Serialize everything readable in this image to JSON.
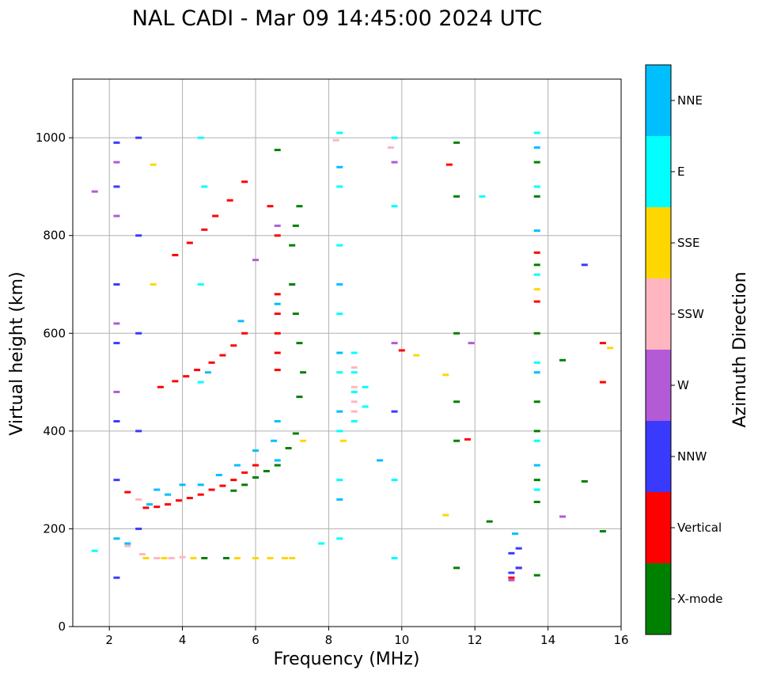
{
  "chart_data": {
    "type": "scatter",
    "title": "NAL CADI - Mar 09 14:45:00 2024 UTC",
    "xlabel": "Frequency (MHz)",
    "ylabel": "Virtual height (km)",
    "xlim": [
      1,
      16
    ],
    "ylim": [
      0,
      1120
    ],
    "xticks": [
      2,
      4,
      6,
      8,
      10,
      12,
      14,
      16
    ],
    "yticks": [
      0,
      200,
      400,
      600,
      800,
      1000
    ],
    "grid": true,
    "colorbar": {
      "label": "Azimuth Direction",
      "categories": [
        "X-mode",
        "Vertical",
        "NNW",
        "W",
        "SSW",
        "SSE",
        "E",
        "NNE"
      ],
      "colors": [
        "#008000",
        "#ff0000",
        "#3a3aff",
        "#b35ad6",
        "#ffb6c1",
        "#ffd700",
        "#00ffff",
        "#00bfff"
      ]
    },
    "series": [
      {
        "name": "Vertical",
        "points": [
          [
            3.0,
            243
          ],
          [
            3.3,
            245
          ],
          [
            3.6,
            250
          ],
          [
            3.9,
            258
          ],
          [
            4.2,
            263
          ],
          [
            4.5,
            270
          ],
          [
            4.8,
            280
          ],
          [
            5.1,
            288
          ],
          [
            5.4,
            300
          ],
          [
            5.7,
            315
          ],
          [
            6.0,
            330
          ],
          [
            2.5,
            275
          ],
          [
            3.4,
            490
          ],
          [
            3.8,
            502
          ],
          [
            4.1,
            512
          ],
          [
            4.4,
            525
          ],
          [
            4.8,
            540
          ],
          [
            5.1,
            555
          ],
          [
            5.4,
            575
          ],
          [
            5.7,
            600
          ],
          [
            3.8,
            760
          ],
          [
            4.2,
            785
          ],
          [
            4.6,
            812
          ],
          [
            4.9,
            840
          ],
          [
            5.3,
            872
          ],
          [
            5.7,
            910
          ],
          [
            6.6,
            525
          ],
          [
            6.6,
            560
          ],
          [
            6.6,
            600
          ],
          [
            6.6,
            640
          ],
          [
            6.6,
            680
          ],
          [
            6.6,
            800
          ],
          [
            6.4,
            860
          ],
          [
            11.3,
            945
          ],
          [
            13.0,
            100
          ],
          [
            13.2,
            120
          ],
          [
            15.5,
            500
          ],
          [
            15.5,
            580
          ],
          [
            13.7,
            665
          ],
          [
            13.7,
            765
          ],
          [
            11.8,
            383
          ],
          [
            10.0,
            565
          ]
        ]
      },
      {
        "name": "X-mode",
        "points": [
          [
            5.4,
            278
          ],
          [
            5.7,
            290
          ],
          [
            6.0,
            305
          ],
          [
            6.3,
            318
          ],
          [
            6.6,
            330
          ],
          [
            6.9,
            365
          ],
          [
            7.1,
            395
          ],
          [
            7.2,
            470
          ],
          [
            7.3,
            520
          ],
          [
            7.2,
            580
          ],
          [
            7.1,
            640
          ],
          [
            7.0,
            700
          ],
          [
            7.0,
            780
          ],
          [
            7.1,
            820
          ],
          [
            7.2,
            860
          ],
          [
            5.2,
            140
          ],
          [
            4.6,
            140
          ],
          [
            11.5,
            990
          ],
          [
            11.5,
            880
          ],
          [
            11.5,
            600
          ],
          [
            11.5,
            460
          ],
          [
            11.5,
            380
          ],
          [
            11.5,
            120
          ],
          [
            13.7,
            950
          ],
          [
            13.7,
            880
          ],
          [
            13.7,
            740
          ],
          [
            13.7,
            600
          ],
          [
            13.7,
            460
          ],
          [
            13.7,
            400
          ],
          [
            13.7,
            300
          ],
          [
            13.7,
            255
          ],
          [
            13.7,
            105
          ],
          [
            14.4,
            545
          ],
          [
            15.0,
            297
          ],
          [
            12.4,
            215
          ],
          [
            15.5,
            195
          ],
          [
            6.6,
            975
          ]
        ]
      },
      {
        "name": "NNW",
        "points": [
          [
            2.2,
            990
          ],
          [
            2.2,
            900
          ],
          [
            2.2,
            700
          ],
          [
            2.2,
            580
          ],
          [
            2.2,
            420
          ],
          [
            2.2,
            300
          ],
          [
            2.2,
            100
          ],
          [
            2.8,
            1000
          ],
          [
            2.8,
            800
          ],
          [
            2.8,
            600
          ],
          [
            2.8,
            400
          ],
          [
            2.8,
            200
          ],
          [
            13.0,
            150
          ],
          [
            13.2,
            160
          ],
          [
            13.2,
            120
          ],
          [
            13.0,
            110
          ],
          [
            15.0,
            740
          ],
          [
            9.8,
            440
          ]
        ]
      },
      {
        "name": "W",
        "points": [
          [
            2.2,
            950
          ],
          [
            2.2,
            840
          ],
          [
            2.2,
            620
          ],
          [
            2.2,
            480
          ],
          [
            1.6,
            890
          ],
          [
            6.6,
            820
          ],
          [
            6.0,
            750
          ],
          [
            9.8,
            950
          ],
          [
            9.8,
            580
          ],
          [
            13.0,
            95
          ],
          [
            14.4,
            225
          ],
          [
            11.9,
            580
          ]
        ]
      },
      {
        "name": "SSW",
        "points": [
          [
            2.5,
            165
          ],
          [
            2.9,
            148
          ],
          [
            3.3,
            140
          ],
          [
            3.7,
            140
          ],
          [
            4.0,
            142
          ],
          [
            8.7,
            530
          ],
          [
            8.7,
            490
          ],
          [
            8.7,
            460
          ],
          [
            8.7,
            440
          ],
          [
            8.2,
            995
          ],
          [
            9.7,
            980
          ],
          [
            2.8,
            260
          ]
        ]
      },
      {
        "name": "SSE",
        "points": [
          [
            3.0,
            140
          ],
          [
            3.5,
            140
          ],
          [
            4.3,
            140
          ],
          [
            5.5,
            140
          ],
          [
            6.0,
            140
          ],
          [
            6.4,
            140
          ],
          [
            6.8,
            140
          ],
          [
            7.0,
            140
          ],
          [
            3.2,
            700
          ],
          [
            3.2,
            945
          ],
          [
            7.3,
            380
          ],
          [
            8.4,
            380
          ],
          [
            10.4,
            555
          ],
          [
            11.2,
            515
          ],
          [
            11.2,
            228
          ],
          [
            15.7,
            570
          ],
          [
            13.7,
            690
          ]
        ]
      },
      {
        "name": "E",
        "points": [
          [
            8.7,
            560
          ],
          [
            8.7,
            520
          ],
          [
            8.7,
            480
          ],
          [
            8.7,
            420
          ],
          [
            9.0,
            490
          ],
          [
            9.0,
            450
          ],
          [
            8.3,
            1010
          ],
          [
            8.3,
            900
          ],
          [
            8.3,
            780
          ],
          [
            8.3,
            640
          ],
          [
            8.3,
            520
          ],
          [
            8.3,
            400
          ],
          [
            8.3,
            300
          ],
          [
            8.3,
            180
          ],
          [
            9.8,
            1000
          ],
          [
            9.8,
            860
          ],
          [
            9.8,
            300
          ],
          [
            9.8,
            140
          ],
          [
            13.7,
            1010
          ],
          [
            13.7,
            900
          ],
          [
            13.7,
            720
          ],
          [
            13.7,
            540
          ],
          [
            13.7,
            380
          ],
          [
            13.7,
            280
          ],
          [
            12.2,
            880
          ],
          [
            4.5,
            1000
          ],
          [
            4.6,
            900
          ],
          [
            4.5,
            700
          ],
          [
            4.5,
            500
          ],
          [
            7.8,
            170
          ],
          [
            1.6,
            155
          ]
        ]
      },
      {
        "name": "NNE",
        "points": [
          [
            2.2,
            180
          ],
          [
            2.5,
            170
          ],
          [
            3.1,
            250
          ],
          [
            3.3,
            280
          ],
          [
            3.6,
            270
          ],
          [
            4.0,
            290
          ],
          [
            4.5,
            290
          ],
          [
            5.0,
            310
          ],
          [
            5.5,
            330
          ],
          [
            6.0,
            360
          ],
          [
            6.5,
            380
          ],
          [
            6.6,
            340
          ],
          [
            6.6,
            420
          ],
          [
            6.6,
            660
          ],
          [
            8.3,
            940
          ],
          [
            8.3,
            700
          ],
          [
            8.3,
            560
          ],
          [
            8.3,
            440
          ],
          [
            8.3,
            260
          ],
          [
            13.7,
            980
          ],
          [
            13.7,
            810
          ],
          [
            13.7,
            520
          ],
          [
            13.7,
            330
          ],
          [
            13.1,
            190
          ],
          [
            9.4,
            340
          ],
          [
            5.6,
            625
          ],
          [
            4.7,
            520
          ]
        ]
      }
    ]
  }
}
